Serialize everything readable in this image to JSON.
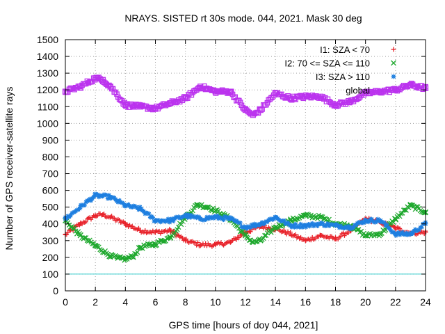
{
  "chart_data": {
    "type": "scatter",
    "title": "NRAYS. SISTED rt 30s mode. 044, 2021. Mask 30 deg",
    "xlabel": "GPS time [hours of doy 044, 2021]",
    "ylabel": "Number of GPS receiver-satellite rays",
    "xlim": [
      0,
      24
    ],
    "ylim": [
      0,
      1500
    ],
    "x_ticks": [
      "0",
      "2",
      "4",
      "6",
      "8",
      "10",
      "12",
      "14",
      "16",
      "18",
      "20",
      "22",
      "24"
    ],
    "y_ticks": [
      "0",
      "100",
      "200",
      "300",
      "400",
      "500",
      "600",
      "700",
      "800",
      "900",
      "1000",
      "1100",
      "1200",
      "1300",
      "1400",
      "1500"
    ],
    "grid": true,
    "legend_position": "top-right",
    "reference_line": {
      "y": 100,
      "color": "#33cccc"
    },
    "series": [
      {
        "name": "I1: SZA < 70",
        "marker": "+",
        "color": "#e8222a",
        "x": [
          0,
          1,
          2,
          2.5,
          3,
          4,
          5,
          6,
          7,
          8,
          9,
          10,
          11,
          12,
          13,
          14,
          15,
          16,
          17,
          18,
          19,
          20,
          21,
          22,
          23,
          24
        ],
        "y": [
          335,
          400,
          450,
          455,
          440,
          400,
          360,
          350,
          360,
          300,
          275,
          275,
          290,
          350,
          385,
          370,
          340,
          300,
          330,
          310,
          360,
          430,
          410,
          375,
          345,
          350
        ]
      },
      {
        "name": "I2: 70 <= SZA <= 110",
        "marker": "x",
        "color": "#1ea82d",
        "x": [
          0,
          1,
          2,
          3,
          3.5,
          4,
          4.5,
          5,
          6,
          7,
          8,
          8.8,
          9.5,
          10,
          11,
          12,
          12.5,
          13,
          14,
          15,
          16,
          17,
          18,
          19,
          20,
          21,
          22,
          23,
          24
        ],
        "y": [
          420,
          330,
          270,
          210,
          195,
          190,
          205,
          260,
          280,
          320,
          440,
          515,
          500,
          480,
          430,
          330,
          290,
          300,
          380,
          420,
          450,
          440,
          400,
          390,
          330,
          340,
          430,
          510,
          470
        ]
      },
      {
        "name": "I3: SZA > 110",
        "marker": "*",
        "color": "#1e7fe0",
        "x": [
          0,
          1,
          2,
          3,
          4,
          5,
          6,
          7,
          8,
          9,
          10,
          11,
          12,
          13,
          14,
          15,
          16,
          17,
          18,
          19,
          20,
          21,
          22,
          23,
          24
        ],
        "y": [
          430,
          500,
          570,
          560,
          510,
          490,
          420,
          420,
          450,
          430,
          440,
          430,
          380,
          400,
          440,
          390,
          390,
          400,
          390,
          380,
          420,
          420,
          340,
          340,
          400
        ]
      },
      {
        "name": "global",
        "marker": "square",
        "color": "#bb33ee",
        "x": [
          0,
          1,
          2,
          2.5,
          3,
          4,
          5,
          6,
          7,
          8,
          9,
          10,
          11,
          12,
          12.5,
          13,
          14,
          15,
          16,
          17,
          18,
          19,
          20,
          21,
          22,
          23,
          24
        ],
        "y": [
          1190,
          1220,
          1270,
          1260,
          1220,
          1110,
          1100,
          1090,
          1120,
          1150,
          1220,
          1190,
          1190,
          1080,
          1050,
          1080,
          1180,
          1150,
          1160,
          1160,
          1110,
          1130,
          1180,
          1190,
          1200,
          1230,
          1210
        ]
      }
    ]
  }
}
